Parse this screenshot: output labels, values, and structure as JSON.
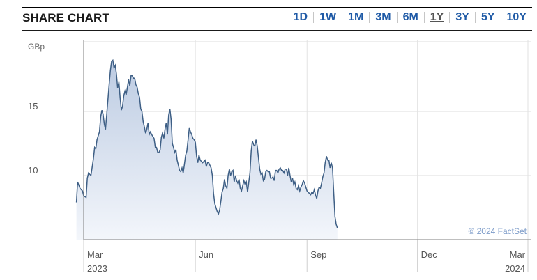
{
  "header": {
    "title": "SHARE CHART",
    "ranges": [
      {
        "label": "1D",
        "active": false
      },
      {
        "label": "1W",
        "active": false
      },
      {
        "label": "1M",
        "active": false
      },
      {
        "label": "3M",
        "active": false
      },
      {
        "label": "6M",
        "active": false
      },
      {
        "label": "1Y",
        "active": true
      },
      {
        "label": "3Y",
        "active": false
      },
      {
        "label": "5Y",
        "active": false
      },
      {
        "label": "10Y",
        "active": false
      }
    ]
  },
  "chart_data": {
    "type": "area",
    "unit_label": "GBp",
    "ylim": [
      5,
      20
    ],
    "yticks": [
      "15",
      "10"
    ],
    "ytick_values": [
      15,
      10
    ],
    "xticks": [
      {
        "month": "Mar",
        "year": "2023",
        "day": 0
      },
      {
        "month": "Jun",
        "year": "",
        "day": 92
      },
      {
        "month": "Sep",
        "year": "",
        "day": 184
      },
      {
        "month": "Dec",
        "year": "",
        "day": 275
      },
      {
        "month": "Mar",
        "year": "2024",
        "day": 366
      }
    ],
    "x_days_span": 366,
    "x_days_start": -6,
    "credit": "© 2024 FactSet",
    "grid": true,
    "line_color": "#3e5f85",
    "fill_top_color": "#bccbe2",
    "fill_bottom_color": "#f3f6fb",
    "series": [
      {
        "values": [
          [
            -6,
            7.9
          ],
          [
            -5,
            9.5
          ],
          [
            -3,
            9.0
          ],
          [
            -1,
            8.8
          ],
          [
            0,
            8.4
          ],
          [
            2,
            8.3
          ],
          [
            3,
            9.8
          ],
          [
            4,
            10.2
          ],
          [
            6,
            10.0
          ],
          [
            8,
            11.3
          ],
          [
            9,
            12.2
          ],
          [
            10,
            12.1
          ],
          [
            11,
            12.8
          ],
          [
            13,
            13.4
          ],
          [
            14,
            14.6
          ],
          [
            15,
            15.1
          ],
          [
            16,
            14.8
          ],
          [
            17,
            14.0
          ],
          [
            18,
            13.6
          ],
          [
            19,
            14.8
          ],
          [
            21,
            17.1
          ],
          [
            22,
            18.2
          ],
          [
            23,
            18.9
          ],
          [
            24,
            19.0
          ],
          [
            25,
            18.4
          ],
          [
            26,
            18.6
          ],
          [
            27,
            17.9
          ],
          [
            28,
            16.8
          ],
          [
            29,
            17.3
          ],
          [
            30,
            16.1
          ],
          [
            31,
            15.1
          ],
          [
            32,
            15.4
          ],
          [
            33,
            16.2
          ],
          [
            34,
            16.6
          ],
          [
            35,
            16.3
          ],
          [
            36,
            16.9
          ],
          [
            37,
            17.5
          ],
          [
            38,
            17.0
          ],
          [
            39,
            17.8
          ],
          [
            40,
            17.8
          ],
          [
            41,
            17.6
          ],
          [
            42,
            17.6
          ],
          [
            43,
            17.1
          ],
          [
            44,
            16.9
          ],
          [
            45,
            16.4
          ],
          [
            46,
            16.1
          ],
          [
            47,
            15.2
          ],
          [
            48,
            15.0
          ],
          [
            49,
            14.2
          ],
          [
            50,
            13.8
          ],
          [
            51,
            13.3
          ],
          [
            52,
            13.6
          ],
          [
            53,
            14.1
          ],
          [
            54,
            13.2
          ],
          [
            55,
            13.4
          ],
          [
            56,
            13.2
          ],
          [
            58,
            12.9
          ],
          [
            59,
            12.2
          ],
          [
            60,
            12.2
          ],
          [
            61,
            11.8
          ],
          [
            62,
            11.8
          ],
          [
            63,
            12.0
          ],
          [
            64,
            13.0
          ],
          [
            65,
            13.3
          ],
          [
            66,
            12.9
          ],
          [
            67,
            13.6
          ],
          [
            68,
            14.1
          ],
          [
            69,
            13.2
          ],
          [
            70,
            14.7
          ],
          [
            71,
            15.2
          ],
          [
            72,
            14.4
          ],
          [
            73,
            12.5
          ],
          [
            74,
            12.2
          ],
          [
            75,
            11.8
          ],
          [
            76,
            12.0
          ],
          [
            77,
            11.2
          ],
          [
            78,
            10.8
          ],
          [
            79,
            10.4
          ],
          [
            80,
            10.3
          ],
          [
            81,
            10.6
          ],
          [
            82,
            10.2
          ],
          [
            83,
            10.9
          ],
          [
            84,
            11.6
          ],
          [
            85,
            11.9
          ],
          [
            86,
            12.8
          ],
          [
            87,
            13.7
          ],
          [
            88,
            13.4
          ],
          [
            89,
            13.2
          ],
          [
            90,
            12.9
          ],
          [
            91,
            12.8
          ],
          [
            92,
            12.6
          ],
          [
            93,
            11.5
          ],
          [
            94,
            11.0
          ],
          [
            95,
            11.6
          ],
          [
            96,
            11.2
          ],
          [
            98,
            11.0
          ],
          [
            100,
            11.2
          ],
          [
            101,
            10.7
          ],
          [
            102,
            11.0
          ],
          [
            103,
            11.0
          ],
          [
            104,
            10.8
          ],
          [
            105,
            10.6
          ],
          [
            106,
            10.0
          ],
          [
            107,
            8.6
          ],
          [
            108,
            7.8
          ],
          [
            109,
            7.5
          ],
          [
            110,
            7.2
          ],
          [
            111,
            7.0
          ],
          [
            112,
            7.3
          ],
          [
            113,
            8.0
          ],
          [
            114,
            8.7
          ],
          [
            115,
            9.0
          ],
          [
            116,
            9.7
          ],
          [
            117,
            9.2
          ],
          [
            118,
            9.0
          ],
          [
            119,
            10.0
          ],
          [
            120,
            10.5
          ],
          [
            121,
            10.0
          ],
          [
            122,
            10.3
          ],
          [
            123,
            10.4
          ],
          [
            124,
            9.5
          ],
          [
            125,
            10.0
          ],
          [
            126,
            9.6
          ],
          [
            127,
            9.4
          ],
          [
            128,
            9.7
          ],
          [
            129,
            9.0
          ],
          [
            130,
            8.8
          ],
          [
            131,
            9.2
          ],
          [
            132,
            9.6
          ],
          [
            133,
            9.3
          ],
          [
            134,
            9.5
          ],
          [
            135,
            8.7
          ],
          [
            137,
            10.2
          ],
          [
            138,
            11.9
          ],
          [
            139,
            12.7
          ],
          [
            140,
            12.4
          ],
          [
            141,
            12.3
          ],
          [
            142,
            12.8
          ],
          [
            143,
            12.3
          ],
          [
            144,
            11.4
          ],
          [
            145,
            10.5
          ],
          [
            146,
            10.1
          ],
          [
            147,
            10.2
          ],
          [
            148,
            9.6
          ],
          [
            149,
            9.7
          ],
          [
            150,
            10.3
          ],
          [
            151,
            10.4
          ],
          [
            152,
            10.3
          ],
          [
            153,
            10.3
          ],
          [
            154,
            9.8
          ],
          [
            155,
            9.8
          ],
          [
            156,
            9.9
          ],
          [
            157,
            9.6
          ],
          [
            158,
            10.4
          ],
          [
            159,
            10.4
          ],
          [
            160,
            10.2
          ],
          [
            161,
            10.5
          ],
          [
            162,
            10.6
          ],
          [
            163,
            10.4
          ],
          [
            164,
            10.4
          ],
          [
            165,
            10.2
          ],
          [
            166,
            10.5
          ],
          [
            167,
            10.5
          ],
          [
            168,
            10.0
          ],
          [
            169,
            10.6
          ],
          [
            170,
            10.0
          ],
          [
            171,
            9.5
          ],
          [
            172,
            9.8
          ],
          [
            173,
            9.3
          ],
          [
            174,
            9.5
          ],
          [
            175,
            9.0
          ],
          [
            176,
            8.9
          ],
          [
            177,
            9.2
          ],
          [
            178,
            8.8
          ],
          [
            179,
            9.1
          ],
          [
            180,
            9.3
          ],
          [
            181,
            9.6
          ],
          [
            182,
            9.4
          ],
          [
            183,
            9.1
          ],
          [
            184,
            8.8
          ],
          [
            185,
            8.7
          ],
          [
            186,
            8.6
          ],
          [
            187,
            8.5
          ],
          [
            188,
            8.7
          ],
          [
            189,
            8.6
          ],
          [
            190,
            8.9
          ],
          [
            191,
            8.5
          ],
          [
            192,
            8.2
          ],
          [
            193,
            8.8
          ],
          [
            194,
            9.1
          ],
          [
            195,
            9.0
          ],
          [
            196,
            9.4
          ],
          [
            197,
            9.9
          ],
          [
            198,
            10.2
          ],
          [
            199,
            11.0
          ],
          [
            200,
            11.5
          ],
          [
            201,
            11.2
          ],
          [
            202,
            11.2
          ],
          [
            203,
            10.6
          ],
          [
            204,
            11.0
          ],
          [
            205,
            10.6
          ],
          [
            206,
            8.7
          ],
          [
            207,
            6.8
          ],
          [
            208,
            6.2
          ],
          [
            209,
            5.9
          ]
        ]
      }
    ]
  }
}
